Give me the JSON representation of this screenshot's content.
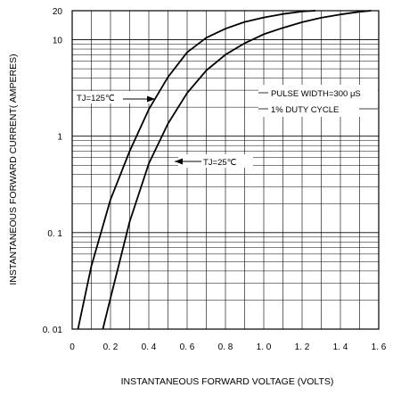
{
  "chart_data": {
    "type": "line",
    "xlabel": "INSTANTANEOUS FORWARD VOLTAGE (VOLTS)",
    "ylabel": "INSTANTANEOUS FORWARD CURRENT( AMPERES)",
    "xlim": [
      0,
      1.6
    ],
    "ylim": [
      0.01,
      20
    ],
    "y_scale": "log",
    "grid": true,
    "x_ticks": [
      {
        "value": 0,
        "label": "0"
      },
      {
        "value": 0.2,
        "label": "0. 2"
      },
      {
        "value": 0.4,
        "label": "0. 4"
      },
      {
        "value": 0.6,
        "label": "0. 6"
      },
      {
        "value": 0.8,
        "label": "0. 8"
      },
      {
        "value": 1.0,
        "label": "1. 0"
      },
      {
        "value": 1.2,
        "label": "1. 2"
      },
      {
        "value": 1.4,
        "label": "1. 4"
      },
      {
        "value": 1.6,
        "label": "1. 6"
      }
    ],
    "y_ticks": [
      {
        "value": 0.01,
        "label": "0. 01"
      },
      {
        "value": 0.1,
        "label": "0. 1"
      },
      {
        "value": 1,
        "label": "1"
      },
      {
        "value": 10,
        "label": "10"
      },
      {
        "value": 20,
        "label": "20"
      }
    ],
    "series": [
      {
        "name": "TJ=125℃",
        "x": [
          0.03,
          0.1,
          0.2,
          0.3,
          0.4,
          0.5,
          0.6,
          0.7,
          0.8,
          0.9,
          1.0,
          1.1,
          1.2,
          1.27
        ],
        "y": [
          0.01,
          0.045,
          0.22,
          0.7,
          1.9,
          4.1,
          7.4,
          10.5,
          13.0,
          15.3,
          17.0,
          18.5,
          19.6,
          20
        ]
      },
      {
        "name": "TJ=25℃",
        "x": [
          0.16,
          0.2,
          0.3,
          0.4,
          0.5,
          0.6,
          0.7,
          0.8,
          0.9,
          1.0,
          1.1,
          1.2,
          1.3,
          1.4,
          1.5,
          1.56
        ],
        "y": [
          0.01,
          0.021,
          0.13,
          0.52,
          1.35,
          2.8,
          4.8,
          7.0,
          9.2,
          11.4,
          13.3,
          15.2,
          16.9,
          18.3,
          19.5,
          20
        ]
      }
    ],
    "annotations": [
      {
        "text": "TJ=125℃",
        "target": "TJ=125℃",
        "arrow": "right"
      },
      {
        "text": "TJ=25℃",
        "target": "TJ=25℃",
        "arrow": "left"
      },
      {
        "text": "PULSE WIDTH=300 μS"
      },
      {
        "text": "1% DUTY CYCLE"
      }
    ]
  }
}
